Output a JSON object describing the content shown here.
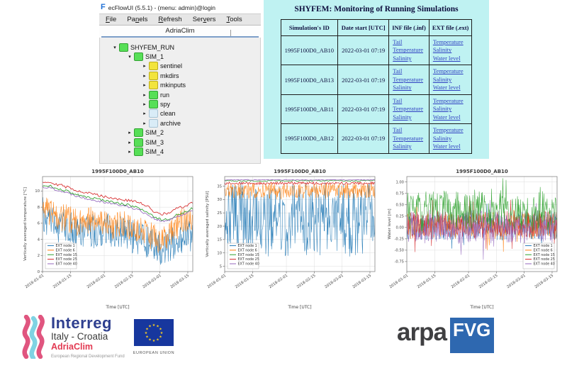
{
  "window": {
    "title": "ecFlowUI (5.5.1) - (menu: admin)@login",
    "app_icon": "F",
    "menu": [
      {
        "label": "File",
        "u": 0
      },
      {
        "label": "Panels",
        "u": 2
      },
      {
        "label": "Refresh",
        "u": 0
      },
      {
        "label": "Servers",
        "u": 3
      },
      {
        "label": "Tools",
        "u": 0
      }
    ],
    "tab": "AdriaClim",
    "tree": [
      {
        "label": "SHYFEM_RUN",
        "state": "green",
        "indent": 0,
        "expanded": true
      },
      {
        "label": "SIM_1",
        "state": "green",
        "indent": 1,
        "expanded": true
      },
      {
        "label": "sentinel",
        "state": "yellow",
        "indent": 2,
        "expanded": false
      },
      {
        "label": "mkdirs",
        "state": "yellow",
        "indent": 2,
        "expanded": false
      },
      {
        "label": "mkinputs",
        "state": "yellow",
        "indent": 2,
        "expanded": false
      },
      {
        "label": "run",
        "state": "green",
        "indent": 2,
        "expanded": false
      },
      {
        "label": "spy",
        "state": "green",
        "indent": 2,
        "expanded": false
      },
      {
        "label": "clean",
        "state": "lightblue",
        "indent": 2,
        "expanded": false
      },
      {
        "label": "archive",
        "state": "lightblue",
        "indent": 2,
        "expanded": false
      },
      {
        "label": "SIM_2",
        "state": "green",
        "indent": 1,
        "expanded": false
      },
      {
        "label": "SIM_3",
        "state": "green",
        "indent": 1,
        "expanded": false
      },
      {
        "label": "SIM_4",
        "state": "green",
        "indent": 1,
        "expanded": false
      }
    ]
  },
  "monitor": {
    "title": "SHYFEM: Monitoring of Running Simulations",
    "headers": [
      "Simulation's ID",
      "Date start [UTC]",
      "INF file (.inf)",
      "EXT file (.ext)"
    ],
    "rows": [
      {
        "id": "1995F100D0_AB10",
        "date": "2022-03-01 07:19",
        "inf": [
          "Tail",
          "Temperature",
          "Salinity"
        ],
        "ext": [
          "Temperature",
          "Salinity",
          "Water level"
        ]
      },
      {
        "id": "1995F100D0_AB13",
        "date": "2022-03-01 07:19",
        "inf": [
          "Tail",
          "Temperature",
          "Salinity"
        ],
        "ext": [
          "Temperature",
          "Salinity",
          "Water level"
        ]
      },
      {
        "id": "1995F100D0_AB11",
        "date": "2022-03-01 07:19",
        "inf": [
          "Tail",
          "Temperature",
          "Salinity"
        ],
        "ext": [
          "Temperature",
          "Salinity",
          "Water level"
        ]
      },
      {
        "id": "1995F100D0_AB12",
        "date": "2022-03-01 07:19",
        "inf": [
          "Tail",
          "Temperature",
          "Salinity"
        ],
        "ext": [
          "Temperature",
          "Salinity",
          "Water level"
        ]
      }
    ]
  },
  "chart_data": [
    {
      "type": "line",
      "title": "1995F100D0_AB10",
      "xlabel": "Time [UTC]",
      "ylabel": "Vertically averaged temperature [°C]",
      "x_tick_labels": [
        "2018-01-01",
        "2018-01-15",
        "2018-02-01",
        "2018-02-15",
        "2018-03-01",
        "2018-03-15"
      ],
      "x_tick_days": [
        0,
        14,
        31,
        45,
        59,
        73
      ],
      "x_range": [
        0,
        75.5
      ],
      "ylim": [
        0,
        11.8
      ],
      "y_tick_values": [
        0,
        2,
        4,
        6,
        8,
        10
      ],
      "y_tick_labels": [
        "0",
        "2",
        "4",
        "6",
        "8",
        "10"
      ],
      "grid": true,
      "legend": {
        "position": "lower-left",
        "entries": [
          "EXT node 1",
          "EXT node 6",
          "EXT node 15",
          "EXT node 25",
          "EXT node 40"
        ]
      },
      "anchors_x": [
        0,
        4,
        8,
        12,
        16,
        20,
        24,
        28,
        32,
        36,
        40,
        44,
        48,
        52,
        56,
        60,
        64,
        68,
        72,
        75
      ],
      "series": [
        {
          "name": "EXT node 1",
          "color": "#1f77b4",
          "anchors_y": [
            9.3,
            8.2,
            7.8,
            8.0,
            7.2,
            6.8,
            7.4,
            6.6,
            7.6,
            6.4,
            7.0,
            6.6,
            6.2,
            5.8,
            5.2,
            4.8,
            5.4,
            6.0,
            6.6,
            6.4
          ],
          "noise": 4.2,
          "bias": "down",
          "steps": 330,
          "lw": 0.55
        },
        {
          "name": "EXT node 6",
          "color": "#ff7f0e",
          "anchors_y": [
            9.8,
            9.0,
            8.4,
            8.6,
            7.8,
            8.0,
            8.2,
            7.4,
            8.0,
            7.2,
            7.6,
            7.4,
            7.0,
            6.6,
            6.0,
            5.6,
            6.4,
            7.4,
            8.4,
            8.6
          ],
          "noise": 3.5,
          "bias": "down",
          "steps": 330,
          "lw": 0.55
        },
        {
          "name": "EXT node 15",
          "color": "#2ca02c",
          "anchors_y": [
            10.7,
            10.6,
            10.3,
            10.0,
            9.7,
            9.4,
            9.2,
            9.0,
            8.8,
            8.6,
            8.4,
            8.2,
            7.9,
            7.4,
            6.8,
            6.4,
            6.6,
            7.1,
            7.4,
            7.8
          ],
          "noise": 0.15,
          "bias": "both",
          "steps": 110,
          "lw": 0.9
        },
        {
          "name": "EXT node 40",
          "color": "#9467bd",
          "anchors_y": [
            10.5,
            10.4,
            10.1,
            9.8,
            9.5,
            9.2,
            9.0,
            8.8,
            8.6,
            8.4,
            8.2,
            8.0,
            7.7,
            7.2,
            6.6,
            6.2,
            6.4,
            6.9,
            7.2,
            7.6
          ],
          "noise": 0.15,
          "bias": "both",
          "steps": 110,
          "lw": 0.9
        },
        {
          "name": "EXT node 25",
          "color": "#d62728",
          "anchors_y": [
            11.2,
            11.1,
            10.8,
            10.5,
            10.2,
            9.9,
            9.7,
            9.5,
            9.3,
            9.1,
            8.9,
            8.8,
            8.6,
            8.2,
            7.5,
            7.1,
            7.3,
            7.9,
            8.1,
            8.5
          ],
          "noise": 0.18,
          "bias": "both",
          "steps": 110,
          "lw": 0.9
        }
      ]
    },
    {
      "type": "line",
      "title": "1995F100D0_AB10",
      "xlabel": "Time [UTC]",
      "ylabel": "Vertically averaged salinity [PSU]",
      "x_tick_labels": [
        "2018-01-01",
        "2018-01-15",
        "2018-02-01",
        "2018-02-15",
        "2018-03-01",
        "2018-03-15"
      ],
      "x_tick_days": [
        0,
        14,
        31,
        45,
        59,
        73
      ],
      "x_range": [
        0,
        75.5
      ],
      "ylim": [
        3,
        38.6
      ],
      "y_tick_values": [
        5,
        10,
        15,
        20,
        25,
        30,
        35
      ],
      "y_tick_labels": [
        "5",
        "10",
        "15",
        "20",
        "25",
        "30",
        "35"
      ],
      "grid": true,
      "legend": {
        "position": "lower-left",
        "entries": [
          "EXT node 1",
          "EXT node 6",
          "EXT node 15",
          "EXT node 25",
          "EXT node 40"
        ]
      },
      "anchors_x": [
        0,
        4,
        8,
        12,
        16,
        20,
        24,
        28,
        32,
        36,
        40,
        44,
        48,
        52,
        56,
        60,
        64,
        68,
        72,
        75
      ],
      "series": [
        {
          "name": "EXT node 1",
          "color": "#1f77b4",
          "anchors_y": [
            36.5,
            36.4,
            36.5,
            36.3,
            36.5,
            36.4,
            36.5,
            36.3,
            36.5,
            36.4,
            36.5,
            36.3,
            36.5,
            36.4,
            36.5,
            36.3,
            36.5,
            36.4,
            36.5,
            36.4
          ],
          "noise": 28,
          "bias": "down",
          "steps": 340,
          "lw": 0.55
        },
        {
          "name": "EXT node 6",
          "color": "#ff7f0e",
          "anchors_y": [
            36.2,
            36.4,
            36.0,
            36.3,
            36.1,
            36.4,
            36.2,
            36.0,
            36.3,
            36.1,
            36.4,
            36.2,
            36.0,
            36.3,
            36.2,
            36.4,
            36.1,
            36.3,
            36.2,
            36.4
          ],
          "noise": 6.0,
          "bias": "down",
          "steps": 330,
          "lw": 0.55
        },
        {
          "name": "EXT node 25",
          "color": "#d62728",
          "anchors_y": [
            36.6,
            36.6,
            36.6,
            36.6,
            36.6,
            36.6,
            36.6,
            36.6,
            36.6,
            36.6,
            36.6,
            36.6,
            36.6,
            36.6,
            36.6,
            36.6,
            36.6,
            36.6,
            36.6,
            36.6
          ],
          "noise": 1.0,
          "bias": "down",
          "steps": 200,
          "lw": 0.8
        },
        {
          "name": "EXT node 15",
          "color": "#2ca02c",
          "anchors_y": [
            37.0,
            37.0,
            37.0,
            37.0,
            37.0,
            37.0,
            37.0,
            37.0,
            37.0,
            37.0,
            37.0,
            37.0,
            37.0,
            37.0,
            37.0,
            37.0,
            37.0,
            37.0,
            37.0,
            37.0
          ],
          "noise": 0.3,
          "bias": "both",
          "steps": 110,
          "lw": 0.8
        },
        {
          "name": "EXT node 40",
          "color": "#9467bd",
          "anchors_y": [
            37.35,
            37.35,
            37.35,
            37.35,
            37.35,
            37.35,
            37.35,
            37.35,
            37.35,
            37.35,
            37.35,
            37.35,
            37.35,
            37.35,
            37.35,
            37.35,
            37.35,
            37.35,
            37.35,
            37.35
          ],
          "noise": 0.15,
          "bias": "both",
          "steps": 110,
          "lw": 0.9
        }
      ]
    },
    {
      "type": "line",
      "title": "1995F100D0_AB10",
      "xlabel": "Time [UTC]",
      "ylabel": "Water level [m]",
      "x_tick_labels": [
        "2018-01-01",
        "2018-01-15",
        "2018-02-01",
        "2018-02-15",
        "2018-03-01",
        "2018-03-15"
      ],
      "x_tick_days": [
        0,
        14,
        31,
        45,
        59,
        73
      ],
      "x_range": [
        0,
        75.5
      ],
      "ylim": [
        -0.97,
        1.12
      ],
      "y_tick_values": [
        -0.75,
        -0.5,
        -0.25,
        0,
        0.25,
        0.5,
        0.75,
        1.0
      ],
      "y_tick_labels": [
        "-0.75",
        "-0.50",
        "-0.25",
        "0.00",
        "0.25",
        "0.50",
        "0.75",
        "1.00"
      ],
      "grid": true,
      "legend": {
        "position": "lower-right",
        "entries": [
          "EXT node 1",
          "EXT node 6",
          "EXT node 15",
          "EXT node 25",
          "EXT node 40"
        ]
      },
      "anchors_x": [
        0,
        4,
        8,
        12,
        16,
        20,
        24,
        28,
        32,
        36,
        40,
        44,
        48,
        52,
        56,
        60,
        64,
        68,
        72,
        75
      ],
      "series": [
        {
          "name": "EXT node 1",
          "color": "#1f77b4",
          "anchors_y": [
            0.0,
            0.02,
            -0.02,
            0.03,
            0.0,
            0.02,
            -0.02,
            0.0,
            0.03,
            -0.02,
            0.02,
            0.0,
            -0.02,
            0.03,
            0.0,
            0.02,
            -0.02,
            0.0,
            0.02,
            0.0
          ],
          "noise": 0.28,
          "bias": "both",
          "steps": 330,
          "lw": 0.5,
          "spike_prob": 0.04,
          "spike_scale": 2.0
        },
        {
          "name": "EXT node 6",
          "color": "#ff7f0e",
          "anchors_y": [
            0.02,
            0.04,
            0.0,
            0.05,
            0.02,
            0.04,
            0.0,
            0.02,
            0.05,
            0.0,
            0.04,
            0.02,
            0.0,
            0.05,
            0.02,
            0.04,
            0.0,
            0.02,
            0.04,
            0.02
          ],
          "noise": 0.28,
          "bias": "both",
          "steps": 330,
          "lw": 0.5,
          "spike_prob": 0.04,
          "spike_scale": 2.0
        },
        {
          "name": "EXT node 25",
          "color": "#d62728",
          "anchors_y": [
            0.08,
            0.05,
            0.1,
            0.04,
            0.09,
            0.06,
            0.1,
            0.05,
            0.08,
            0.04,
            0.09,
            0.06,
            0.05,
            0.08,
            0.04,
            0.07,
            0.1,
            0.06,
            0.08,
            0.05
          ],
          "noise": 0.3,
          "bias": "both",
          "steps": 330,
          "lw": 0.55,
          "spike_prob": 0.05,
          "spike_scale": 2.2
        },
        {
          "name": "EXT node 40",
          "color": "#9467bd",
          "anchors_y": [
            0.02,
            0.06,
            -0.02,
            0.05,
            0.0,
            0.08,
            0.02,
            -0.03,
            0.04,
            0.06,
            -0.02,
            0.03,
            0.05,
            -0.04,
            0.02,
            0.0,
            0.04,
            0.02,
            0.0,
            0.03
          ],
          "noise": 0.36,
          "bias": "both",
          "steps": 330,
          "lw": 0.55,
          "spike_prob": 0.05,
          "spike_scale": 2.2
        },
        {
          "name": "EXT node 15",
          "color": "#2ca02c",
          "anchors_y": [
            0.35,
            0.42,
            0.3,
            0.45,
            0.33,
            0.5,
            0.4,
            0.32,
            0.38,
            0.46,
            0.3,
            0.36,
            0.42,
            0.3,
            0.34,
            0.28,
            0.33,
            0.38,
            0.3,
            0.35
          ],
          "noise": 0.42,
          "bias": "both",
          "steps": 330,
          "lw": 0.55,
          "spike_prob": 0.03,
          "spike_scale": 1.8
        }
      ]
    }
  ],
  "logos": {
    "interreg": {
      "name": "Interreg",
      "sub": "Italy - Croatia",
      "program": "AdriaClim",
      "fund": "European Regional Development Fund",
      "eu_caption": "EUROPEAN UNION",
      "flag_blue": "#17379e",
      "star_yellow": "#ffd21e",
      "wave_pink": "#e0557f",
      "wave_cyan": "#7fd3e3"
    },
    "arpa": {
      "name": "arpa",
      "region": "FVG",
      "box_blue": "#2e68b0"
    }
  }
}
